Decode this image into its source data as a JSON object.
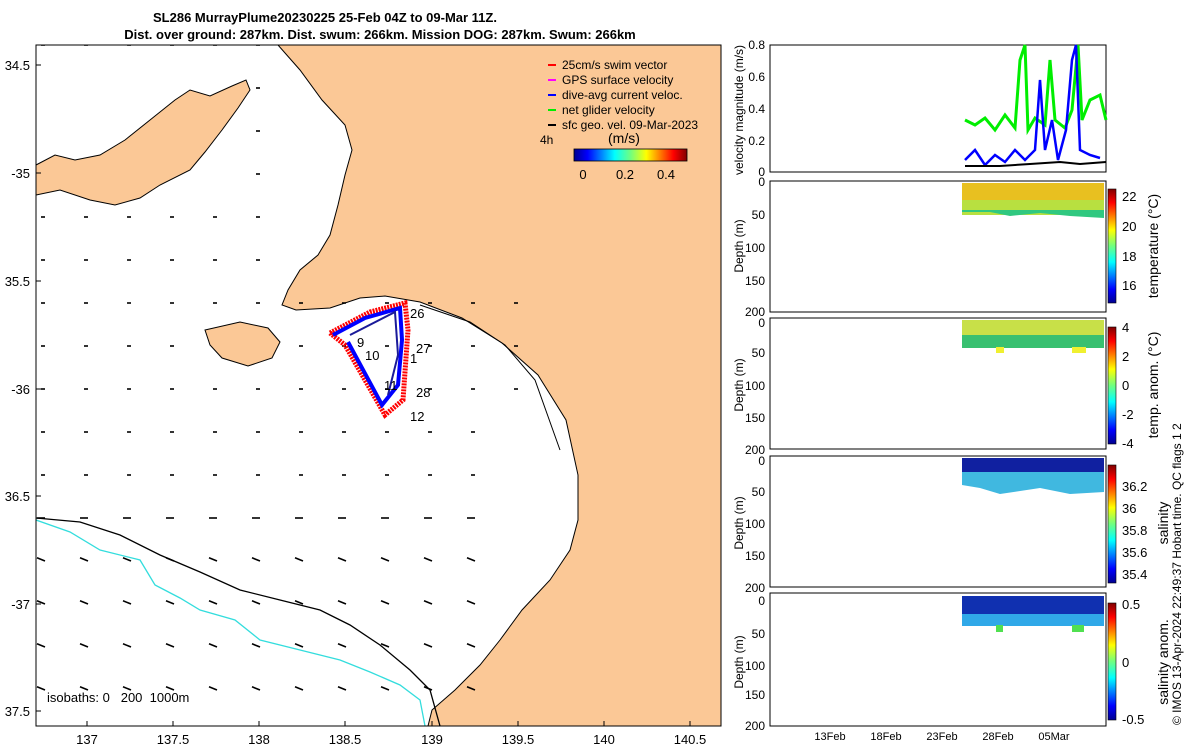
{
  "title": {
    "line1": "SL286 MurrayPlume20230225 25-Feb 04Z to 09-Mar 11Z.",
    "line2": "Dist. over ground: 287km. Dist. swum: 266km. Mission DOG: 287km. Swum: 266km"
  },
  "map": {
    "lat_ticks": [
      "34.5",
      "-35",
      "35.5",
      "-36",
      "36.5",
      "-37",
      "37.5"
    ],
    "lon_ticks": [
      "137",
      "137.5",
      "138",
      "138.5",
      "139",
      "139.5",
      "140",
      "140.5"
    ],
    "legend": [
      {
        "label": "25cm/s swim vector",
        "color": "#ff0000"
      },
      {
        "label": "GPS surface velocity",
        "color": "#ff00ff"
      },
      {
        "label": "dive-avg current veloc.",
        "color": "#0000ff"
      },
      {
        "label": "net glider velocity",
        "color": "#00ee00"
      },
      {
        "label": "sfc geo. vel. 09-Mar-2023",
        "color": "#000000"
      }
    ],
    "scale_label": "4h",
    "colorbar_title": "(m/s)",
    "colorbar_ticks": [
      "0",
      "0.2",
      "0.4"
    ],
    "day_labels": [
      "26",
      "9",
      "10",
      "27",
      "1",
      "11",
      "28",
      "12"
    ],
    "isobaths_label": "isobaths: 0   200  1000m"
  },
  "panels": {
    "velocity": {
      "ylabel": "velocity magnitude (m/s)",
      "ticks": [
        "0.8",
        "0.6",
        "0.4",
        "0.2",
        "0"
      ]
    },
    "temperature": {
      "ylabel": "Depth (m)",
      "depth_ticks": [
        "0",
        "50",
        "100",
        "150",
        "200"
      ],
      "cb_label": "temperature (°C)",
      "cb_ticks": [
        "22",
        "20",
        "18",
        "16"
      ]
    },
    "temp_anom": {
      "ylabel": "Depth (m)",
      "depth_ticks": [
        "0",
        "50",
        "100",
        "150",
        "200"
      ],
      "cb_label": "temp. anom. (°C)",
      "cb_ticks": [
        "4",
        "2",
        "0",
        "-2",
        "-4"
      ]
    },
    "salinity": {
      "ylabel": "Depth (m)",
      "depth_ticks": [
        "0",
        "50",
        "100",
        "150",
        "200"
      ],
      "cb_label": "salinity",
      "cb_ticks": [
        "36.2",
        "36",
        "35.8",
        "35.6",
        "35.4"
      ]
    },
    "sal_anom": {
      "ylabel": "Depth (m)",
      "depth_ticks": [
        "0",
        "50",
        "100",
        "150",
        "200"
      ],
      "cb_label": "salinity anom.",
      "cb_ticks": [
        "0.5",
        "0",
        "-0.5"
      ]
    },
    "x_ticks": [
      "13Feb",
      "18Feb",
      "23Feb",
      "28Feb",
      "05Mar"
    ]
  },
  "credit": "© IMOS 13-Apr-2024 22:49:37 Hobart time. QC flags 1  2"
}
